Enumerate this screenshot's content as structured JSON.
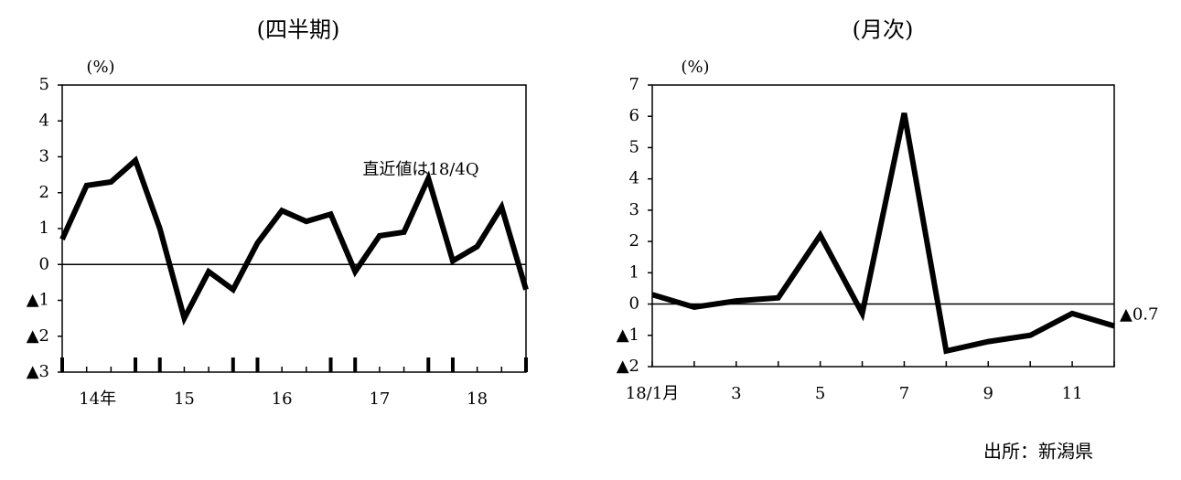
{
  "chart_data": [
    {
      "type": "line",
      "title": "(四半期)",
      "y_unit": "(%)",
      "annotation": "直近値は18/4Q",
      "categories": [
        null,
        "14年",
        null,
        null,
        null,
        "15",
        null,
        null,
        null,
        "16",
        null,
        null,
        null,
        "17",
        null,
        null,
        null,
        "18",
        null,
        null
      ],
      "series": [
        {
          "color": "#000000",
          "values": [
            0.7,
            2.2,
            2.3,
            2.9,
            1.0,
            -1.5,
            -0.2,
            -0.7,
            0.6,
            1.5,
            1.2,
            1.4,
            -0.2,
            0.8,
            0.9,
            2.4,
            0.1,
            0.5,
            1.6,
            -0.7
          ]
        }
      ],
      "ylim": [
        -3,
        5
      ],
      "yticks": [
        {
          "value": -3,
          "label": "▲3"
        },
        {
          "value": -2,
          "label": "▲2"
        },
        {
          "value": -1,
          "label": "▲1"
        },
        0,
        1,
        2,
        3,
        4,
        5
      ]
    },
    {
      "type": "line",
      "title": "(月次)",
      "y_unit": "(%)",
      "categories": [
        "18/1月",
        null,
        "3",
        null,
        "5",
        null,
        "7",
        null,
        "9",
        null,
        "11",
        null
      ],
      "series": [
        {
          "color": "#000000",
          "values": [
            0.3,
            -0.1,
            0.1,
            0.2,
            2.2,
            -0.3,
            6.1,
            -1.5,
            -1.2,
            -1.0,
            -0.3,
            -0.7
          ],
          "value_labels": [
            null,
            null,
            null,
            null,
            null,
            null,
            null,
            null,
            null,
            null,
            null,
            "▲0.7"
          ]
        }
      ],
      "ylim": [
        -2,
        7
      ],
      "yticks": [
        {
          "value": -2,
          "label": "▲2"
        },
        {
          "value": -1,
          "label": "▲1"
        },
        0,
        1,
        2,
        3,
        4,
        5,
        6,
        7
      ]
    }
  ],
  "source": "出所：新潟県"
}
